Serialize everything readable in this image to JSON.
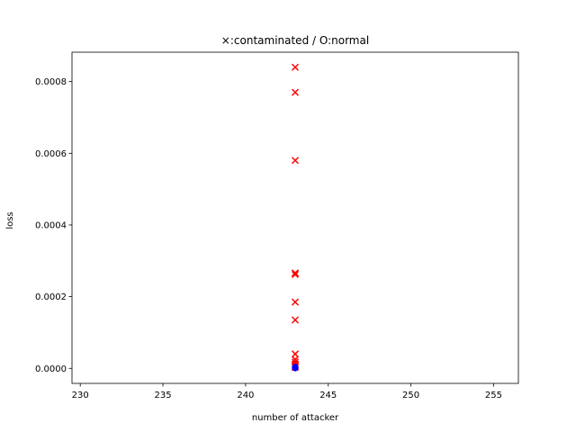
{
  "chart_data": {
    "type": "scatter",
    "title": "×:contaminated / O:normal",
    "xlabel": "number of attacker",
    "ylabel": "loss",
    "xlim": [
      229.5,
      256.5
    ],
    "ylim": [
      -4.2e-05,
      0.000882
    ],
    "xticks": [
      230,
      235,
      240,
      245,
      250,
      255
    ],
    "yticks": [
      0.0,
      0.0002,
      0.0004,
      0.0006,
      0.0008
    ],
    "ytick_labels": [
      "0.0000",
      "0.0002",
      "0.0004",
      "0.0006",
      "0.0008"
    ],
    "grid": false,
    "series": [
      {
        "marker": "x",
        "color": "#ff0000",
        "points": [
          [
            243,
            0.00084
          ],
          [
            243,
            0.00077
          ],
          [
            243,
            0.00058
          ],
          [
            243,
            0.000266
          ],
          [
            243,
            0.000262
          ],
          [
            243,
            0.000185
          ],
          [
            243,
            0.000135
          ],
          [
            243,
            4e-05
          ],
          [
            243,
            2.5e-05
          ],
          [
            243,
            1.8e-05
          ],
          [
            243,
            1.2e-05
          ],
          [
            243,
            8e-06
          ],
          [
            243,
            5e-06
          ],
          [
            243,
            3e-06
          ]
        ]
      },
      {
        "marker": "o",
        "color": "#0000ff",
        "points": [
          [
            243,
            4e-06
          ],
          [
            243,
            3e-06
          ],
          [
            243,
            2e-06
          ],
          [
            243,
            1e-06
          ],
          [
            243,
            5e-07
          ]
        ]
      }
    ]
  }
}
